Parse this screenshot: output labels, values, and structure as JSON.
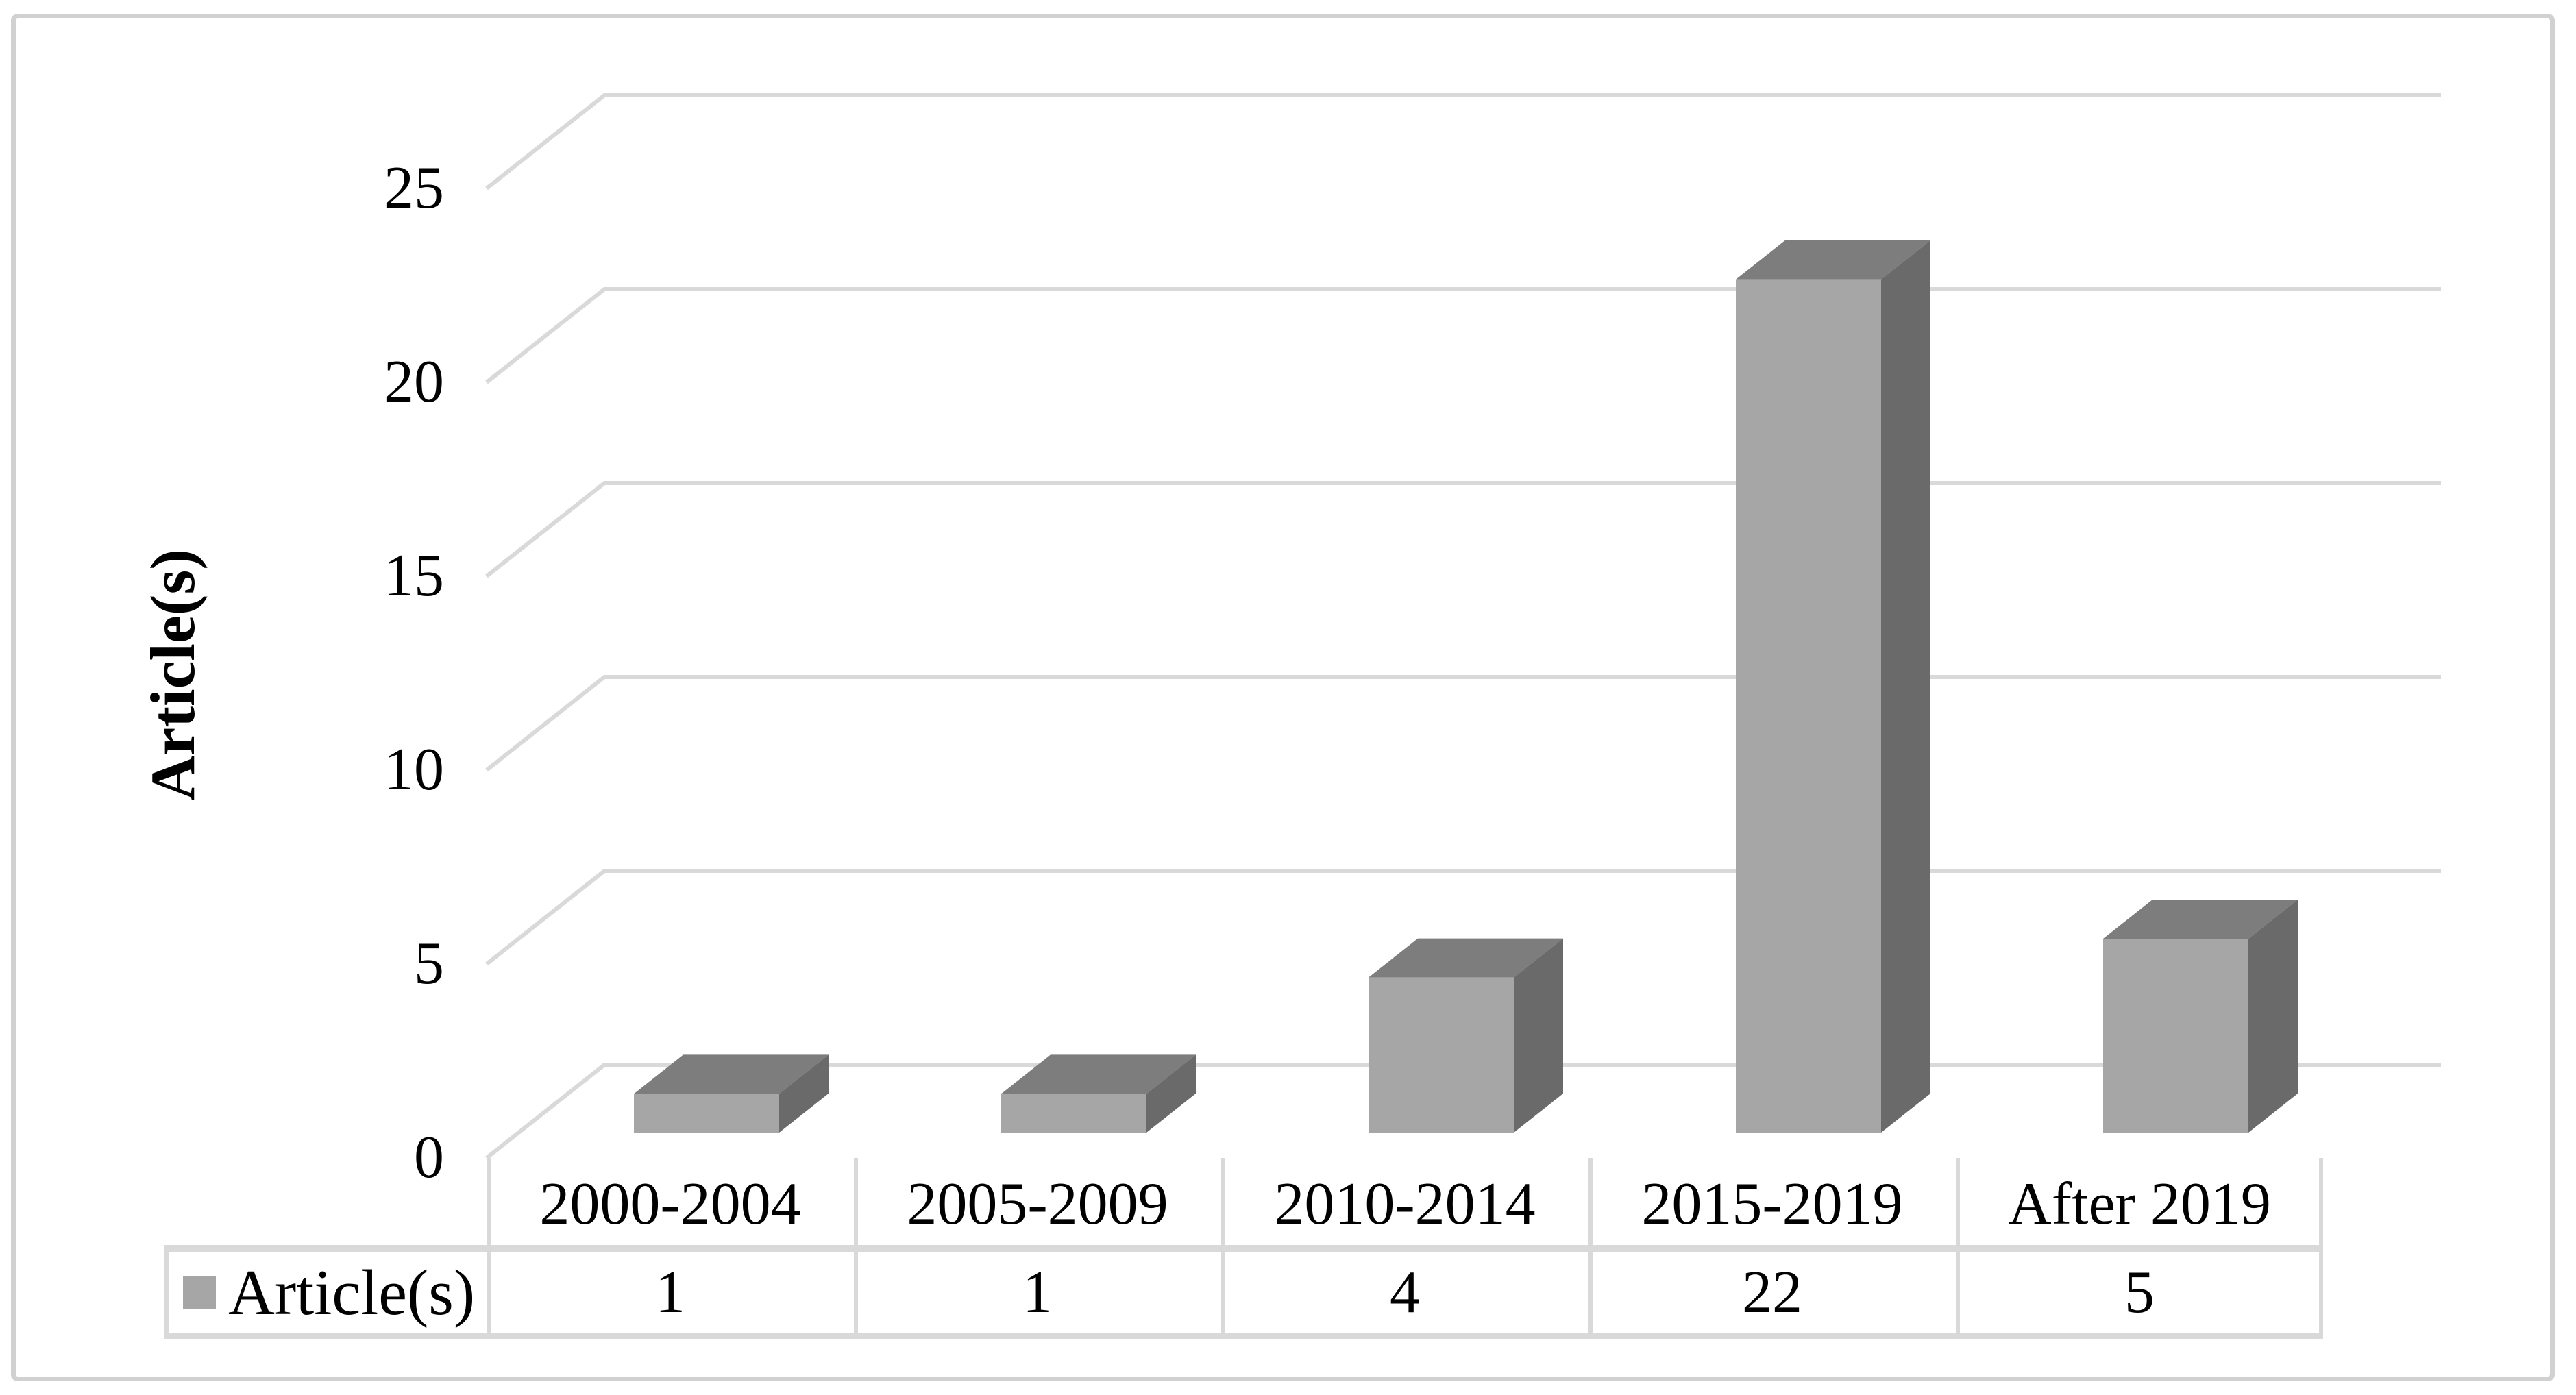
{
  "figure": {
    "background": "#ffffff",
    "border_color": "#d1d1d1"
  },
  "chart_data": {
    "type": "bar",
    "style": "3d-column",
    "title": "",
    "xlabel": "",
    "ylabel": "Article(s)",
    "categories": [
      "2000-2004",
      "2005-2009",
      "2010-2014",
      "2015-2019",
      "After 2019"
    ],
    "series": [
      {
        "name": "Article(s)",
        "values": [
          1,
          1,
          4,
          22,
          5
        ]
      }
    ],
    "ylim": [
      0,
      25
    ],
    "yticks": [
      0,
      5,
      10,
      15,
      20,
      25
    ],
    "ytick_labels": [
      "0",
      "5",
      "10",
      "15",
      "20",
      "25"
    ],
    "grid": true,
    "gridline_color": "#d9d9d9",
    "bar_front_color": "#a6a6a6",
    "bar_top_color": "#7d7d7d",
    "bar_side_color": "#6a6a6a",
    "legend_position": "bottom-table"
  },
  "table": {
    "legend_label": "Article(s)",
    "legend_marker_color": "#a6a6a6",
    "values": [
      "1",
      "1",
      "4",
      "22",
      "5"
    ],
    "border_color": "#d9d9d9"
  }
}
